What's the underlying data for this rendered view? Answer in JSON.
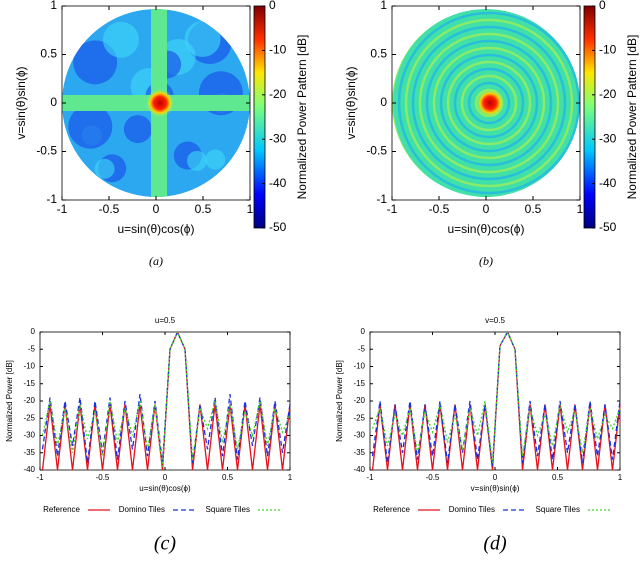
{
  "chart_data": [
    {
      "type": "heatmap",
      "xlabel": "u=sin(θ)cos(ϕ)",
      "ylabel": "v=sin(θ)sin(ϕ)",
      "panel_label": "(a)",
      "xlim": [
        -1,
        1
      ],
      "ylim": [
        -1,
        1
      ],
      "xticks": [
        -1,
        -0.5,
        0,
        0.5,
        1
      ],
      "yticks": [
        -1,
        -0.5,
        0,
        0.5,
        1
      ],
      "colorbar": {
        "label": "Normalized Power Pattern [dB]",
        "lim": [
          -50,
          0
        ],
        "ticks": [
          -50,
          -40,
          -30,
          -20,
          -10,
          0
        ]
      }
    },
    {
      "type": "heatmap",
      "xlabel": "u=sin(θ)cos(ϕ)",
      "ylabel": "v=sin(θ)sin(ϕ)",
      "panel_label": "(b)",
      "xlim": [
        -1,
        1
      ],
      "ylim": [
        -1,
        1
      ],
      "xticks": [
        -1,
        -0.5,
        0,
        0.5,
        1
      ],
      "yticks": [
        -1,
        -0.5,
        0,
        0.5,
        1
      ],
      "colorbar": {
        "label": "Normalized Power Pattern [dB]",
        "lim": [
          -50,
          0
        ],
        "ticks": [
          -50,
          -40,
          -30,
          -20,
          -10,
          0
        ]
      }
    },
    {
      "type": "line",
      "title": "u=0.5",
      "xlabel": "u=sin(θ)cos(ϕ)",
      "ylabel": "Normalized Power [dB]",
      "panel_label": "(c)",
      "xlim": [
        -1,
        1
      ],
      "ylim": [
        -40,
        0
      ],
      "xticks": [
        -1,
        -0.5,
        0,
        0.5,
        1
      ],
      "yticks": [
        -40,
        -35,
        -30,
        -25,
        -20,
        -15,
        -10,
        -5,
        0
      ],
      "x": [
        -0.98,
        -0.92,
        -0.86,
        -0.8,
        -0.74,
        -0.68,
        -0.62,
        -0.56,
        -0.5,
        -0.44,
        -0.38,
        -0.32,
        -0.26,
        -0.2,
        -0.14,
        -0.08,
        -0.02,
        0.04,
        0.1,
        0.16,
        0.22,
        0.28,
        0.34,
        0.4,
        0.46,
        0.52,
        0.58,
        0.64,
        0.7,
        0.76,
        0.82,
        0.88,
        0.94,
        1
      ],
      "series": [
        {
          "name": "Reference",
          "color": "#e8101a",
          "dash": "solid",
          "values": [
            -40,
            -21,
            -40,
            -21,
            -40,
            -21,
            -40,
            -21,
            -40,
            -21,
            -40,
            -21,
            -40,
            -21,
            -40,
            -21,
            -40,
            -5,
            0,
            -5,
            -40,
            -21,
            -40,
            -21,
            -40,
            -21,
            -40,
            -21,
            -40,
            -21,
            -40,
            -21,
            -40,
            -21
          ]
        },
        {
          "name": "Domino Tiles",
          "color": "#1a2fe0",
          "dash": "dashed",
          "values": [
            -34,
            -19,
            -36,
            -20,
            -33,
            -19,
            -38,
            -20,
            -35,
            -19,
            -37,
            -20,
            -34,
            -18,
            -36,
            -20,
            -38,
            -5,
            0,
            -5,
            -38,
            -21,
            -34,
            -19,
            -36,
            -18,
            -37,
            -20,
            -33,
            -19,
            -36,
            -20,
            -35,
            -21
          ]
        },
        {
          "name": "Square Tiles",
          "color": "#3fd62a",
          "dash": "dotted",
          "values": [
            -30,
            -20,
            -33,
            -22,
            -35,
            -21,
            -31,
            -23,
            -36,
            -20,
            -32,
            -22,
            -30,
            -20,
            -34,
            -21,
            -39,
            -5,
            0,
            -5,
            -37,
            -22,
            -28,
            -20,
            -32,
            -21,
            -34,
            -23,
            -30,
            -20,
            -33,
            -22,
            -29,
            -24
          ]
        }
      ]
    },
    {
      "type": "line",
      "title": "v=0.5",
      "xlabel": "v=sin(θ)sin(ϕ)",
      "ylabel": "Normalized Power [dB]",
      "panel_label": "(d)",
      "xlim": [
        -1,
        1
      ],
      "ylim": [
        -40,
        0
      ],
      "xticks": [
        -1,
        -0.5,
        0,
        0.5,
        1
      ],
      "yticks": [
        -40,
        -35,
        -30,
        -25,
        -20,
        -15,
        -10,
        -5,
        0
      ],
      "x": [
        -0.98,
        -0.92,
        -0.86,
        -0.8,
        -0.74,
        -0.68,
        -0.62,
        -0.56,
        -0.5,
        -0.44,
        -0.38,
        -0.32,
        -0.26,
        -0.2,
        -0.14,
        -0.08,
        -0.02,
        0.04,
        0.1,
        0.16,
        0.22,
        0.28,
        0.34,
        0.4,
        0.46,
        0.52,
        0.58,
        0.64,
        0.7,
        0.76,
        0.82,
        0.88,
        0.94,
        1
      ],
      "series": [
        {
          "name": "Reference",
          "color": "#e8101a",
          "dash": "solid",
          "values": [
            -40,
            -21,
            -40,
            -21,
            -40,
            -21,
            -40,
            -21,
            -40,
            -21,
            -40,
            -21,
            -40,
            -21,
            -40,
            -21,
            -40,
            -4,
            0,
            -5,
            -40,
            -21,
            -40,
            -21,
            -40,
            -21,
            -40,
            -21,
            -40,
            -21,
            -40,
            -21,
            -40,
            -21
          ]
        },
        {
          "name": "Domino Tiles",
          "color": "#1a2fe0",
          "dash": "dashed",
          "values": [
            -36,
            -20,
            -38,
            -21,
            -35,
            -20,
            -37,
            -21,
            -36,
            -20,
            -38,
            -21,
            -35,
            -20,
            -37,
            -21,
            -39,
            -4,
            0,
            -5,
            -38,
            -20,
            -36,
            -21,
            -37,
            -20,
            -35,
            -21,
            -38,
            -20,
            -36,
            -21,
            -37,
            -20
          ]
        },
        {
          "name": "Square Tiles",
          "color": "#3fd62a",
          "dash": "dotted",
          "values": [
            -28,
            -22,
            -33,
            -24,
            -30,
            -22,
            -35,
            -23,
            -29,
            -21,
            -32,
            -24,
            -34,
            -22,
            -30,
            -20,
            -38,
            -4,
            0,
            -5,
            -36,
            -22,
            -30,
            -24,
            -33,
            -21,
            -29,
            -23,
            -35,
            -22,
            -31,
            -24,
            -28,
            -22
          ]
        }
      ]
    }
  ]
}
